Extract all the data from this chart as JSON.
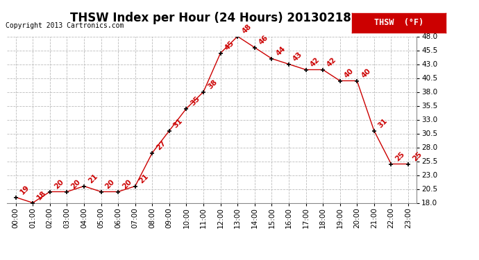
{
  "title": "THSW Index per Hour (24 Hours) 20130218",
  "copyright": "Copyright 2013 Cartronics.com",
  "legend_label": "THSW  (°F)",
  "x_labels": [
    "00:00",
    "01:00",
    "02:00",
    "03:00",
    "04:00",
    "05:00",
    "06:00",
    "07:00",
    "08:00",
    "09:00",
    "10:00",
    "11:00",
    "12:00",
    "13:00",
    "14:00",
    "15:00",
    "16:00",
    "17:00",
    "18:00",
    "19:00",
    "20:00",
    "21:00",
    "22:00",
    "23:00"
  ],
  "hours": [
    0,
    1,
    2,
    3,
    4,
    5,
    6,
    7,
    8,
    9,
    10,
    11,
    12,
    13,
    14,
    15,
    16,
    17,
    18,
    19,
    20,
    21,
    22,
    23
  ],
  "values": [
    19,
    18,
    20,
    20,
    21,
    20,
    20,
    21,
    27,
    31,
    35,
    38,
    45,
    48,
    46,
    44,
    43,
    42,
    42,
    40,
    40,
    31,
    25,
    25
  ],
  "ylim_min": 18.0,
  "ylim_max": 48.0,
  "yticks": [
    18.0,
    20.5,
    23.0,
    25.5,
    28.0,
    30.5,
    33.0,
    35.5,
    38.0,
    40.5,
    43.0,
    45.5,
    48.0
  ],
  "line_color": "#cc0000",
  "marker_color": "#000000",
  "label_color": "#cc0000",
  "bg_color": "#ffffff",
  "grid_color": "#bbbbbb",
  "title_fontsize": 12,
  "tick_fontsize": 7.5,
  "annotation_fontsize": 7.5,
  "legend_bg": "#cc0000",
  "legend_text_color": "#ffffff"
}
